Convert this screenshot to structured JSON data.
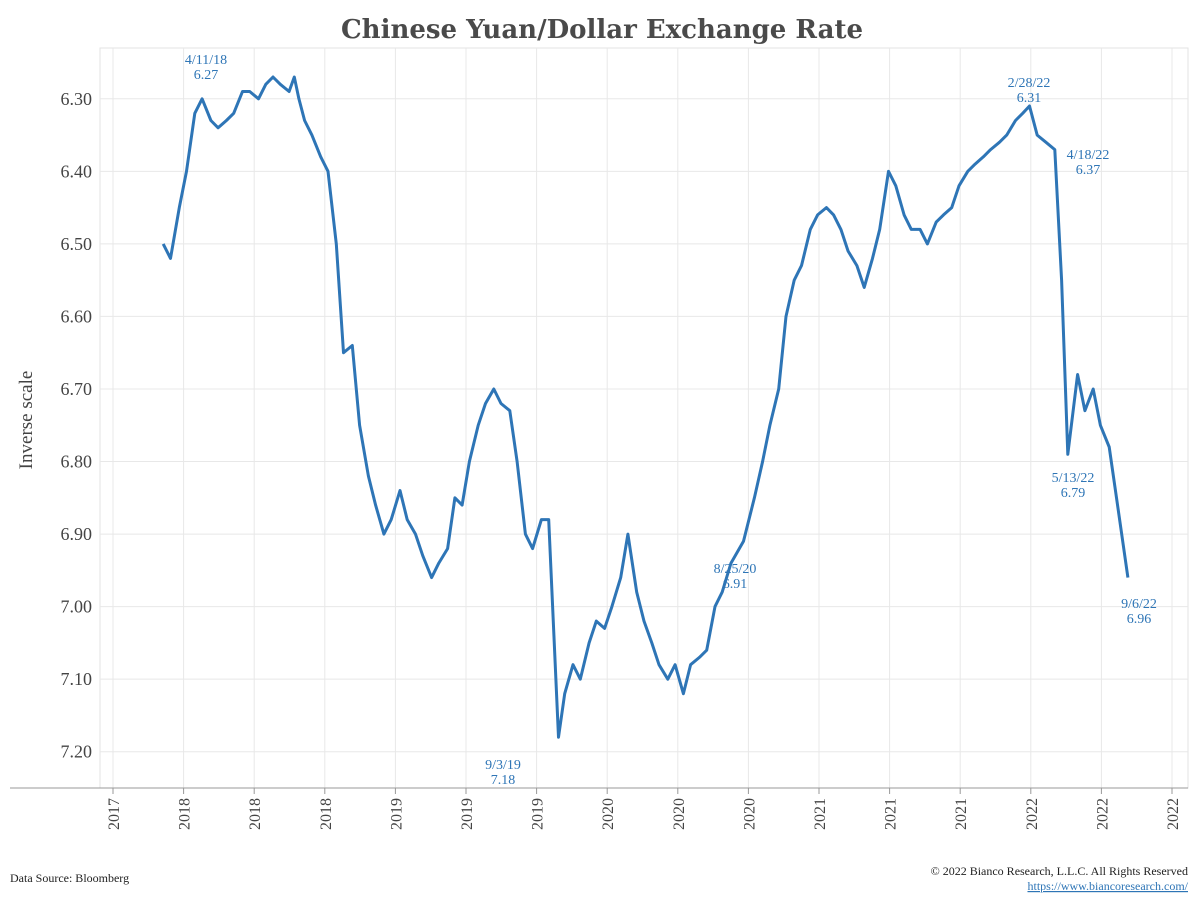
{
  "chart_data": {
    "type": "line",
    "title": "Chinese Yuan/Dollar Exchange Rate",
    "ylabel": "Inverse scale",
    "y_inverted": true,
    "ylim": [
      6.23,
      7.25
    ],
    "y_ticks": [
      "6.30",
      "6.40",
      "6.50",
      "6.60",
      "6.70",
      "6.80",
      "6.90",
      "7.00",
      "7.10",
      "7.20"
    ],
    "x_tick_labels": [
      "2017",
      "2018",
      "2018",
      "2018",
      "2019",
      "2019",
      "2019",
      "2020",
      "2020",
      "2020",
      "2021",
      "2021",
      "2021",
      "2022",
      "2022",
      "2022",
      "2022"
    ],
    "color": "#2e75b6",
    "series": [
      {
        "x": [
          "2017-08-01",
          "2017-08-15",
          "2017-09-01",
          "2017-09-15",
          "2017-10-01",
          "2017-10-15",
          "2017-11-01",
          "2017-11-15",
          "2017-12-01",
          "2017-12-15",
          "2018-01-01",
          "2018-01-15",
          "2018-02-01",
          "2018-02-15",
          "2018-03-01",
          "2018-03-15",
          "2018-04-01",
          "2018-04-11",
          "2018-04-20",
          "2018-05-01",
          "2018-05-15",
          "2018-06-01",
          "2018-06-15",
          "2018-07-01",
          "2018-07-15",
          "2018-08-01",
          "2018-08-15",
          "2018-09-01",
          "2018-09-15",
          "2018-10-01",
          "2018-10-15",
          "2018-11-01",
          "2018-11-15",
          "2018-12-01",
          "2018-12-15",
          "2019-01-01",
          "2019-01-15",
          "2019-02-01",
          "2019-02-15",
          "2019-03-01",
          "2019-03-15",
          "2019-04-01",
          "2019-04-15",
          "2019-05-01",
          "2019-05-15",
          "2019-06-01",
          "2019-06-15",
          "2019-07-01",
          "2019-07-15",
          "2019-08-01",
          "2019-08-15",
          "2019-09-03",
          "2019-09-15",
          "2019-10-01",
          "2019-10-15",
          "2019-11-01",
          "2019-11-15",
          "2019-12-01",
          "2019-12-15",
          "2020-01-01",
          "2020-01-15",
          "2020-02-01",
          "2020-02-15",
          "2020-03-01",
          "2020-03-15",
          "2020-04-01",
          "2020-04-15",
          "2020-05-01",
          "2020-05-15",
          "2020-06-01",
          "2020-06-15",
          "2020-07-01",
          "2020-07-15",
          "2020-08-01",
          "2020-08-25",
          "2020-09-15",
          "2020-10-01",
          "2020-10-15",
          "2020-11-01",
          "2020-11-15",
          "2020-12-01",
          "2020-12-15",
          "2021-01-01",
          "2021-01-15",
          "2021-02-01",
          "2021-02-15",
          "2021-03-01",
          "2021-03-15",
          "2021-04-01",
          "2021-04-15",
          "2021-05-01",
          "2021-05-15",
          "2021-06-01",
          "2021-06-15",
          "2021-07-01",
          "2021-07-15",
          "2021-08-01",
          "2021-08-15",
          "2021-09-01",
          "2021-09-15",
          "2021-10-01",
          "2021-10-15",
          "2021-11-01",
          "2021-11-15",
          "2021-12-01",
          "2021-12-15",
          "2022-01-01",
          "2022-01-15",
          "2022-02-01",
          "2022-02-15",
          "2022-02-28",
          "2022-03-15",
          "2022-04-01",
          "2022-04-18",
          "2022-05-01",
          "2022-05-13",
          "2022-06-01",
          "2022-06-15",
          "2022-07-01",
          "2022-07-15",
          "2022-08-01",
          "2022-08-15",
          "2022-09-06"
        ],
        "values": [
          6.5,
          6.52,
          6.45,
          6.4,
          6.32,
          6.3,
          6.33,
          6.34,
          6.33,
          6.32,
          6.29,
          6.29,
          6.3,
          6.28,
          6.27,
          6.28,
          6.29,
          6.27,
          6.3,
          6.33,
          6.35,
          6.38,
          6.4,
          6.5,
          6.65,
          6.64,
          6.75,
          6.82,
          6.86,
          6.9,
          6.88,
          6.84,
          6.88,
          6.9,
          6.93,
          6.96,
          6.94,
          6.92,
          6.85,
          6.86,
          6.8,
          6.75,
          6.72,
          6.7,
          6.72,
          6.73,
          6.8,
          6.9,
          6.92,
          6.88,
          6.88,
          7.18,
          7.12,
          7.08,
          7.1,
          7.05,
          7.02,
          7.03,
          7.0,
          6.96,
          6.9,
          6.98,
          7.02,
          7.05,
          7.08,
          7.1,
          7.08,
          7.12,
          7.08,
          7.07,
          7.06,
          7.0,
          6.98,
          6.94,
          6.91,
          6.85,
          6.8,
          6.75,
          6.7,
          6.6,
          6.55,
          6.53,
          6.48,
          6.46,
          6.45,
          6.46,
          6.48,
          6.51,
          6.53,
          6.56,
          6.52,
          6.48,
          6.4,
          6.42,
          6.46,
          6.48,
          6.48,
          6.5,
          6.47,
          6.46,
          6.45,
          6.42,
          6.4,
          6.39,
          6.38,
          6.37,
          6.36,
          6.35,
          6.33,
          6.32,
          6.31,
          6.35,
          6.36,
          6.37,
          6.55,
          6.79,
          6.68,
          6.73,
          6.7,
          6.75,
          6.78,
          6.85,
          6.96
        ]
      }
    ],
    "annotations": [
      {
        "date": "4/11/18",
        "value": "6.27"
      },
      {
        "date": "9/3/19",
        "value": "7.18"
      },
      {
        "date": "8/25/20",
        "value": "6.91"
      },
      {
        "date": "2/28/22",
        "value": "6.31"
      },
      {
        "date": "4/18/22",
        "value": "6.37"
      },
      {
        "date": "5/13/22",
        "value": "6.79"
      },
      {
        "date": "9/6/22",
        "value": "6.96"
      }
    ]
  },
  "footer": {
    "source": "Data Source: Bloomberg",
    "copyright": "© 2022 Bianco Research, L.L.C. All Rights Reserved",
    "url": "https://www.biancoresearch.com/"
  }
}
